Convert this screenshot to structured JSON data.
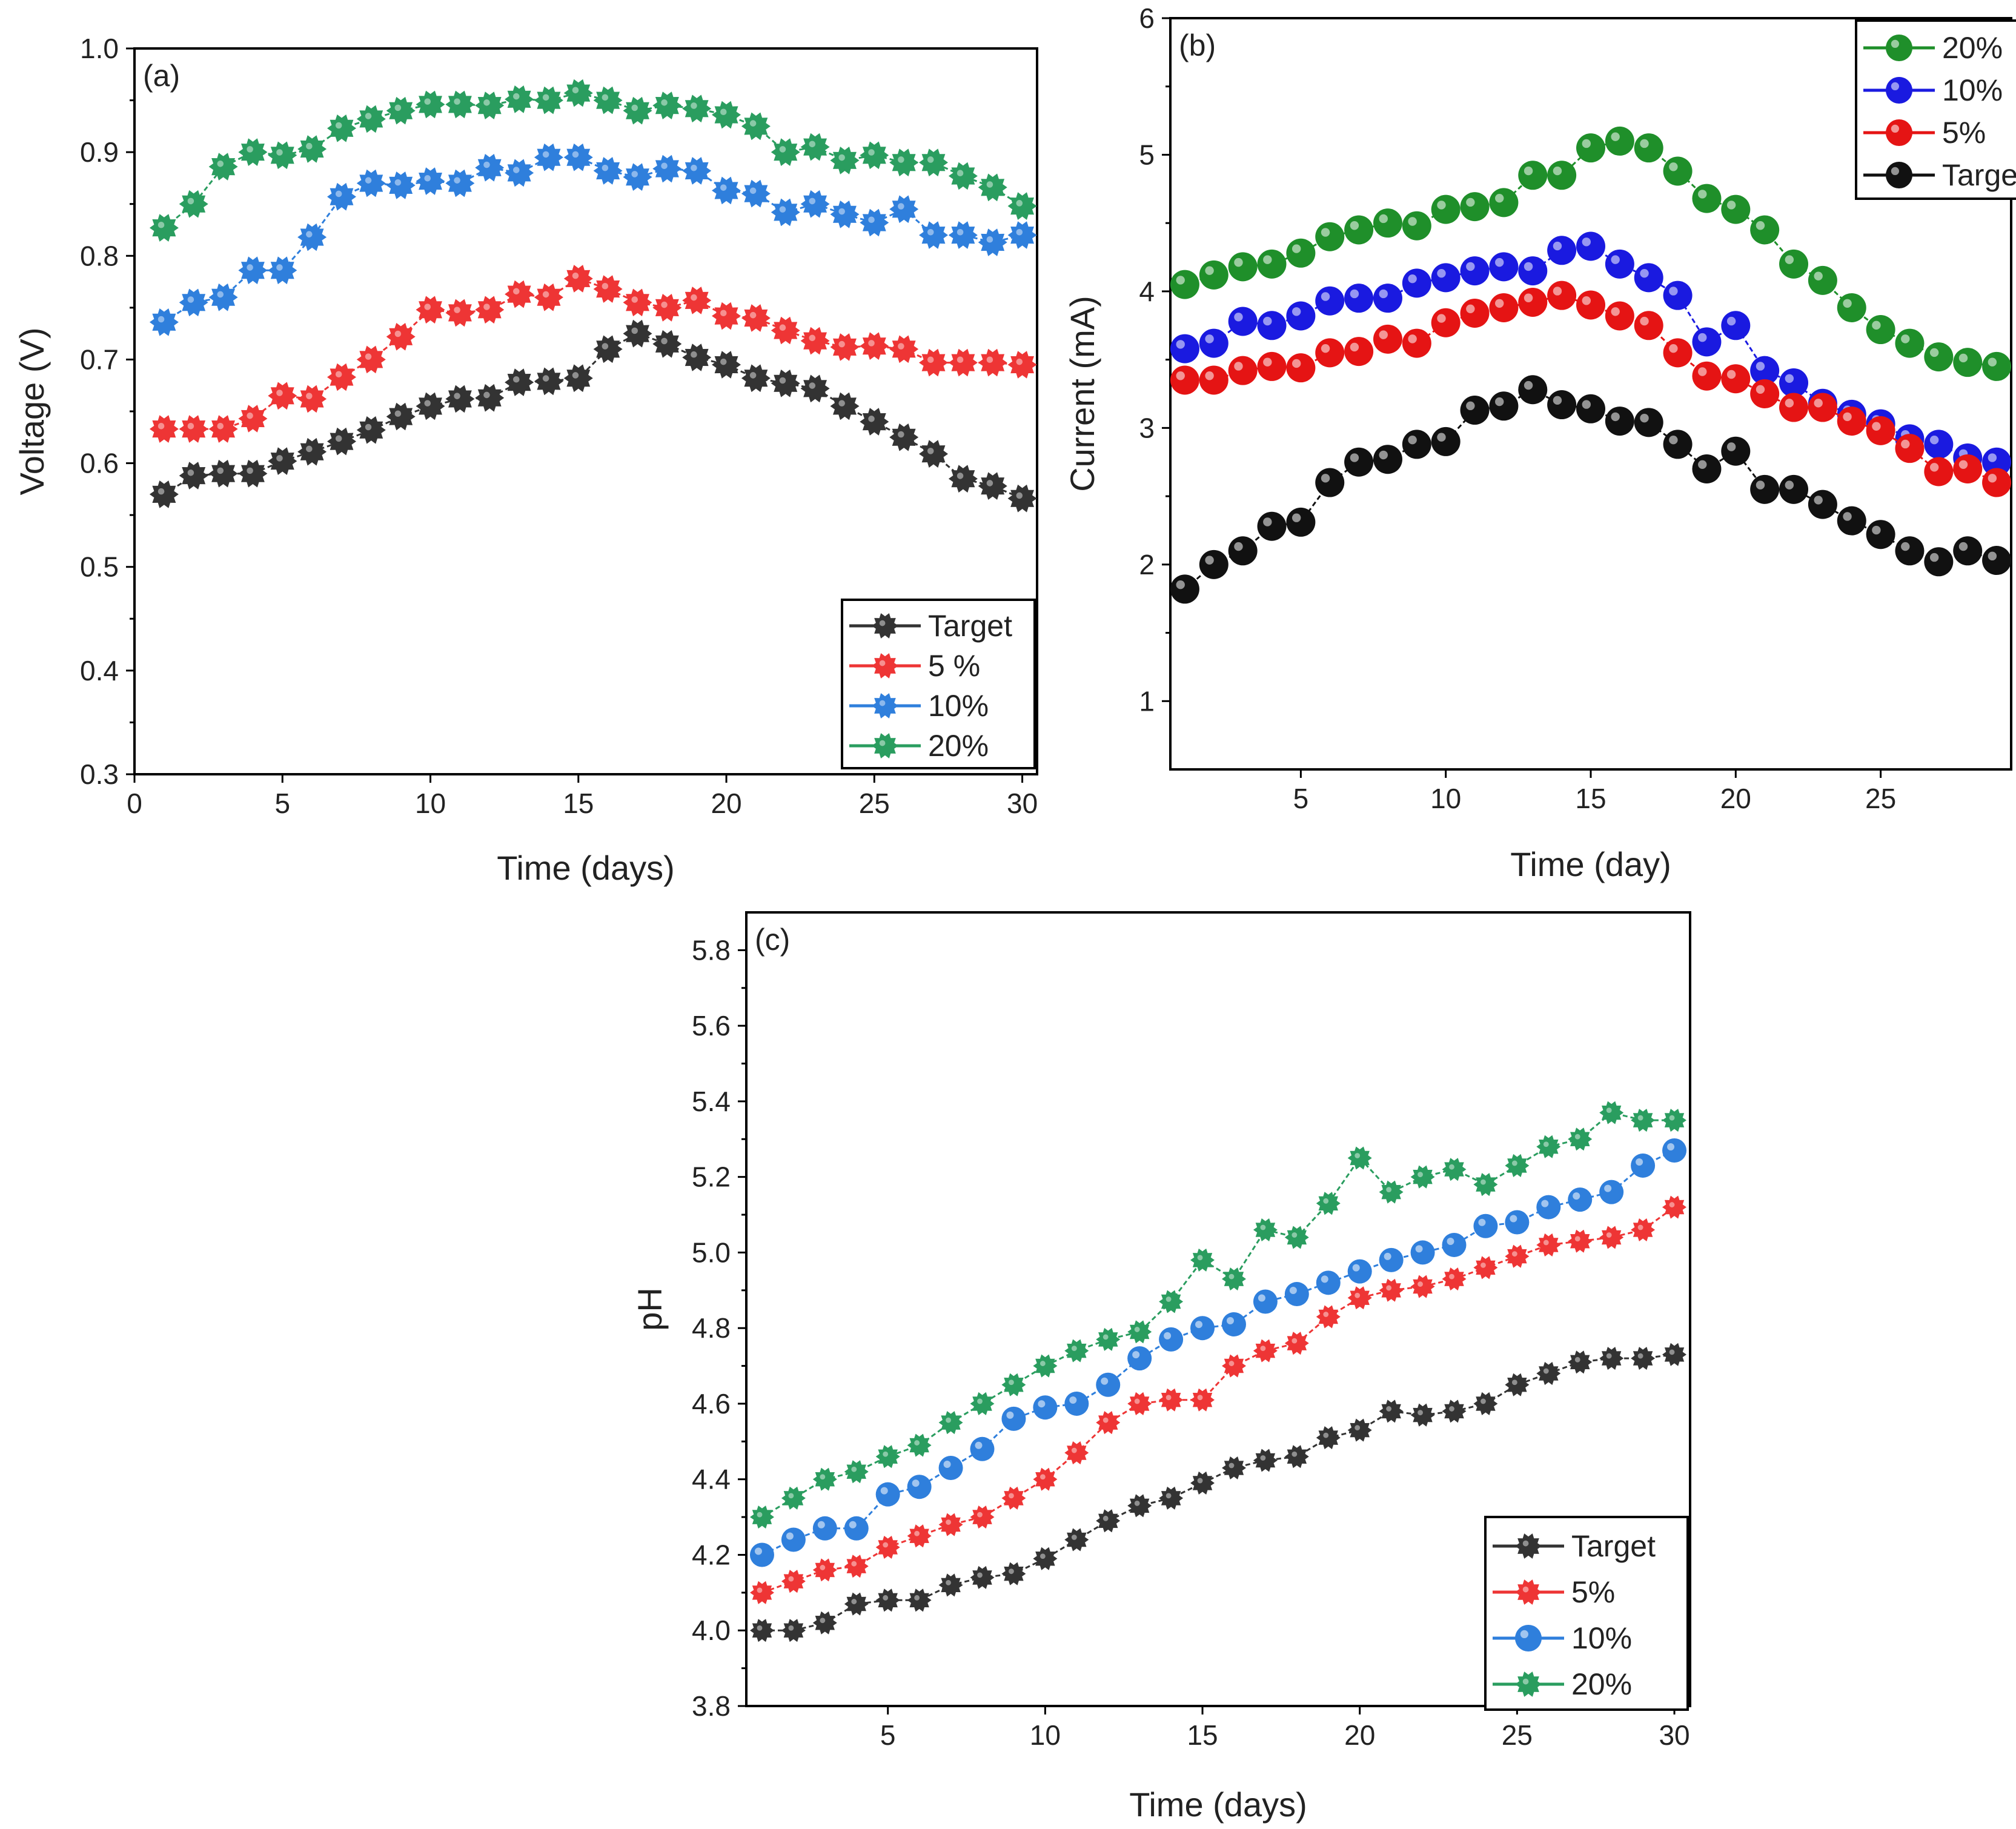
{
  "chart_data": [
    {
      "type": "line",
      "panel": "(a)",
      "xlabel": "Time (days)",
      "ylabel": "Voltage (V)",
      "xlim": [
        0,
        30.5
      ],
      "ylim": [
        0.3,
        1.0
      ],
      "xticks": [
        0,
        5,
        10,
        15,
        20,
        25,
        30
      ],
      "yticks": [
        0.3,
        0.4,
        0.5,
        0.6,
        0.7,
        0.8,
        0.9,
        1.0
      ],
      "ytick_labels": [
        "0.3",
        "0.4",
        "0.5",
        "0.6",
        "0.7",
        "0.8",
        "0.9",
        "1.0"
      ],
      "legend_position": "bottom-right",
      "x": [
        1,
        2,
        3,
        4,
        5,
        6,
        7,
        8,
        9,
        10,
        11,
        12,
        13,
        14,
        15,
        16,
        17,
        18,
        19,
        20,
        21,
        22,
        23,
        24,
        25,
        26,
        27,
        28,
        29,
        30
      ],
      "series": [
        {
          "name": "Target",
          "color": "#333333",
          "marker": "gear",
          "values": [
            0.57,
            0.588,
            0.59,
            0.59,
            0.602,
            0.611,
            0.621,
            0.632,
            0.645,
            0.655,
            0.662,
            0.663,
            0.678,
            0.679,
            0.682,
            0.71,
            0.725,
            0.715,
            0.702,
            0.695,
            0.682,
            0.677,
            0.672,
            0.655,
            0.64,
            0.625,
            0.609,
            0.585,
            0.578,
            0.566
          ]
        },
        {
          "name": "5 %",
          "color": "#ee3535",
          "marker": "gear",
          "values": [
            0.633,
            0.633,
            0.633,
            0.643,
            0.665,
            0.662,
            0.683,
            0.7,
            0.722,
            0.748,
            0.745,
            0.748,
            0.763,
            0.76,
            0.778,
            0.768,
            0.755,
            0.75,
            0.757,
            0.742,
            0.74,
            0.728,
            0.718,
            0.712,
            0.713,
            0.71,
            0.697,
            0.697,
            0.697,
            0.695
          ]
        },
        {
          "name": "10%",
          "color": "#2f7fdc",
          "marker": "gear",
          "values": [
            0.736,
            0.755,
            0.76,
            0.786,
            0.786,
            0.818,
            0.857,
            0.87,
            0.868,
            0.872,
            0.87,
            0.885,
            0.88,
            0.895,
            0.895,
            0.882,
            0.876,
            0.884,
            0.882,
            0.863,
            0.86,
            0.842,
            0.85,
            0.84,
            0.832,
            0.845,
            0.82,
            0.82,
            0.813,
            0.82
          ]
        },
        {
          "name": "20%",
          "color": "#2a9d5f",
          "marker": "gear",
          "values": [
            0.827,
            0.85,
            0.886,
            0.9,
            0.897,
            0.903,
            0.923,
            0.932,
            0.94,
            0.946,
            0.946,
            0.945,
            0.951,
            0.95,
            0.957,
            0.95,
            0.94,
            0.945,
            0.942,
            0.936,
            0.925,
            0.9,
            0.905,
            0.892,
            0.897,
            0.89,
            0.89,
            0.877,
            0.866,
            0.848
          ]
        }
      ]
    },
    {
      "type": "line",
      "panel": "(b)",
      "xlabel": "Time (day)",
      "ylabel": "Current (mA)",
      "xlim": [
        0.5,
        29.5
      ],
      "ylim": [
        0.5,
        6.0
      ],
      "xticks": [
        5,
        10,
        15,
        20,
        25
      ],
      "yticks": [
        1,
        2,
        3,
        4,
        5,
        6
      ],
      "legend_position": "top-right",
      "x": [
        1,
        2,
        3,
        4,
        5,
        6,
        7,
        8,
        9,
        10,
        11,
        12,
        13,
        14,
        15,
        16,
        17,
        18,
        19,
        20,
        21,
        22,
        23,
        24,
        25,
        26,
        27,
        28,
        29
      ],
      "series": [
        {
          "name": "20%",
          "color": "#1f8f2a",
          "marker": "sphere",
          "values": [
            4.05,
            4.12,
            4.18,
            4.2,
            4.28,
            4.4,
            4.45,
            4.5,
            4.48,
            4.6,
            4.62,
            4.65,
            4.85,
            4.85,
            5.05,
            5.1,
            5.05,
            4.88,
            4.68,
            4.6,
            4.45,
            4.2,
            4.08,
            3.88,
            3.72,
            3.62,
            3.52,
            3.48,
            3.45
          ]
        },
        {
          "name": "10%",
          "color": "#1a1ae0",
          "marker": "sphere",
          "values": [
            3.58,
            3.62,
            3.78,
            3.75,
            3.82,
            3.93,
            3.95,
            3.95,
            4.06,
            4.1,
            4.15,
            4.18,
            4.15,
            4.3,
            4.33,
            4.2,
            4.1,
            3.97,
            3.63,
            3.75,
            3.42,
            3.33,
            3.18,
            3.1,
            3.03,
            2.92,
            2.88,
            2.78,
            2.75
          ]
        },
        {
          "name": "5%",
          "color": "#e51414",
          "marker": "sphere",
          "values": [
            3.35,
            3.35,
            3.42,
            3.45,
            3.44,
            3.55,
            3.56,
            3.65,
            3.62,
            3.77,
            3.84,
            3.88,
            3.92,
            3.97,
            3.9,
            3.82,
            3.75,
            3.55,
            3.38,
            3.36,
            3.25,
            3.15,
            3.15,
            3.05,
            2.98,
            2.85,
            2.68,
            2.7,
            2.6
          ]
        },
        {
          "name": "Target",
          "color": "#111111",
          "marker": "sphere",
          "values": [
            1.82,
            2.0,
            2.1,
            2.28,
            2.31,
            2.6,
            2.75,
            2.77,
            2.88,
            2.9,
            3.13,
            3.16,
            3.28,
            3.17,
            3.14,
            3.05,
            3.04,
            2.88,
            2.7,
            2.83,
            2.55,
            2.55,
            2.44,
            2.32,
            2.22,
            2.1,
            2.02,
            2.1,
            2.03
          ]
        }
      ]
    },
    {
      "type": "line",
      "panel": "(c)",
      "xlabel": "Time (days)",
      "ylabel": "pH",
      "xlim": [
        0.5,
        30.5
      ],
      "ylim": [
        3.8,
        5.9
      ],
      "xticks": [
        5,
        10,
        15,
        20,
        25,
        30
      ],
      "yticks": [
        3.8,
        4.0,
        4.2,
        4.4,
        4.6,
        4.8,
        5.0,
        5.2,
        5.4,
        5.6,
        5.8
      ],
      "ytick_labels": [
        "3.8",
        "4.0",
        "4.2",
        "4.4",
        "4.6",
        "4.8",
        "5.0",
        "5.2",
        "5.4",
        "5.6",
        "5.8"
      ],
      "legend_position": "bottom-right",
      "x": [
        1,
        2,
        3,
        4,
        5,
        6,
        7,
        8,
        9,
        10,
        11,
        12,
        13,
        14,
        15,
        16,
        17,
        18,
        19,
        20,
        21,
        22,
        23,
        24,
        25,
        26,
        27,
        28,
        29,
        30
      ],
      "series": [
        {
          "name": "Target",
          "color": "#333333",
          "marker": "gear",
          "values": [
            4.0,
            4.0,
            4.02,
            4.07,
            4.08,
            4.08,
            4.12,
            4.14,
            4.15,
            4.19,
            4.24,
            4.29,
            4.33,
            4.35,
            4.39,
            4.43,
            4.45,
            4.46,
            4.51,
            4.53,
            4.58,
            4.57,
            4.58,
            4.6,
            4.65,
            4.68,
            4.71,
            4.72,
            4.72,
            4.73
          ]
        },
        {
          "name": "5%",
          "color": "#ee3535",
          "marker": "gear",
          "values": [
            4.1,
            4.13,
            4.16,
            4.17,
            4.22,
            4.25,
            4.28,
            4.3,
            4.35,
            4.4,
            4.47,
            4.55,
            4.6,
            4.61,
            4.61,
            4.7,
            4.74,
            4.76,
            4.83,
            4.88,
            4.9,
            4.91,
            4.93,
            4.96,
            4.99,
            5.02,
            5.03,
            5.04,
            5.06,
            5.12
          ]
        },
        {
          "name": "10%",
          "color": "#2f7fdc",
          "marker": "sphere",
          "values": [
            4.2,
            4.24,
            4.27,
            4.27,
            4.36,
            4.38,
            4.43,
            4.48,
            4.56,
            4.59,
            4.6,
            4.65,
            4.72,
            4.77,
            4.8,
            4.81,
            4.87,
            4.89,
            4.92,
            4.95,
            4.98,
            5.0,
            5.02,
            5.07,
            5.08,
            5.12,
            5.14,
            5.16,
            5.23,
            5.27
          ]
        },
        {
          "name": "20%",
          "color": "#2a9d5f",
          "marker": "gear",
          "values": [
            4.3,
            4.35,
            4.4,
            4.42,
            4.46,
            4.49,
            4.55,
            4.6,
            4.65,
            4.7,
            4.74,
            4.77,
            4.79,
            4.87,
            4.98,
            4.93,
            5.06,
            5.04,
            5.13,
            5.25,
            5.16,
            5.2,
            5.22,
            5.18,
            5.23,
            5.28,
            5.3,
            5.37,
            5.35,
            5.35
          ]
        }
      ]
    }
  ]
}
